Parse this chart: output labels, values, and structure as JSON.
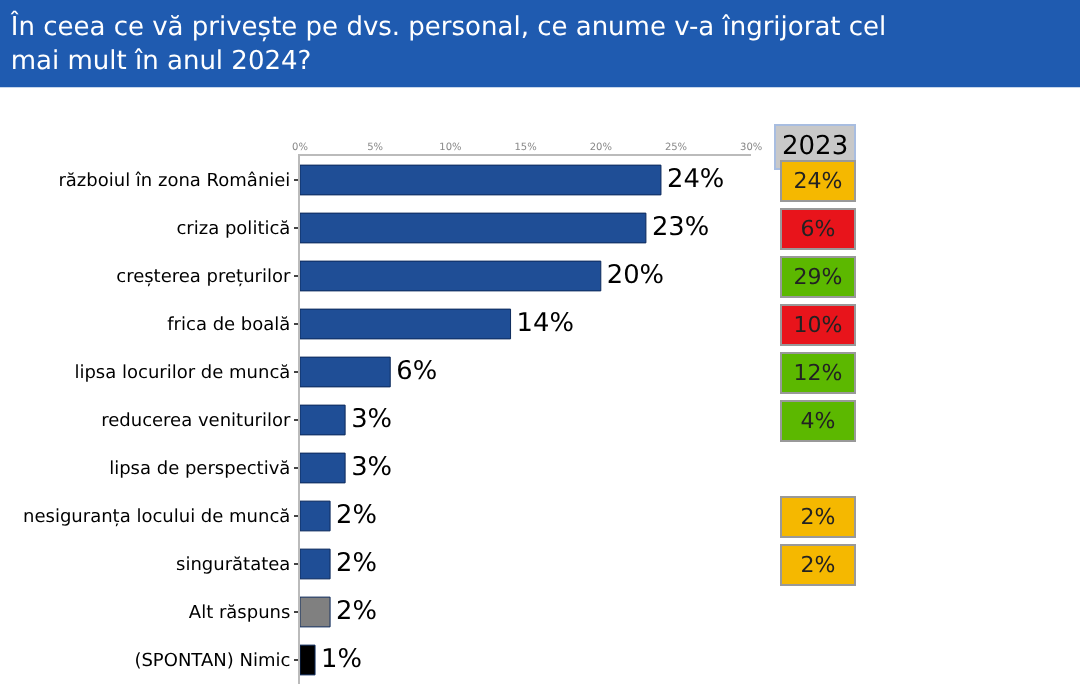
{
  "chart_data": {
    "type": "bar",
    "orientation": "horizontal",
    "title": "În ceea ce vă privește pe dvs. personal, ce anume v-a îngrijorat cel mai mult în anul 2024?",
    "categories": [
      "războiul în zona României",
      "criza politică",
      "creșterea prețurilor",
      "frica de boală",
      "lipsa locurilor de muncă",
      "reducerea veniturilor",
      "lipsa de perspectivă",
      "nesiguranța locului de muncă",
      "singurătatea",
      "Alt răspuns",
      "(SPONTAN) Nimic"
    ],
    "values": [
      24,
      23,
      20,
      14,
      6,
      3,
      3,
      2,
      2,
      2,
      1
    ],
    "value_labels": [
      "24%",
      "23%",
      "20%",
      "14%",
      "6%",
      "3%",
      "3%",
      "2%",
      "2%",
      "2%",
      "1%"
    ],
    "colors": [
      "#1f4e96",
      "#1f4e96",
      "#1f4e96",
      "#1f4e96",
      "#1f4e96",
      "#1f4e96",
      "#1f4e96",
      "#1f4e96",
      "#1f4e96",
      "#808080",
      "#000000"
    ],
    "xlim": [
      0,
      30
    ],
    "xticks": [
      {
        "value": 0,
        "label": "0%"
      },
      {
        "value": 5,
        "label": "5%"
      },
      {
        "value": 10,
        "label": "10%"
      },
      {
        "value": 15,
        "label": "15%"
      },
      {
        "value": 20,
        "label": "20%"
      },
      {
        "value": 25,
        "label": "25%"
      },
      {
        "value": 30,
        "label": "30%"
      }
    ],
    "legend": false,
    "annotations": [
      "2023",
      "24%",
      "6%",
      "29%",
      "10%",
      "12%",
      "4%",
      null,
      "2%",
      "2%"
    ]
  }
}
